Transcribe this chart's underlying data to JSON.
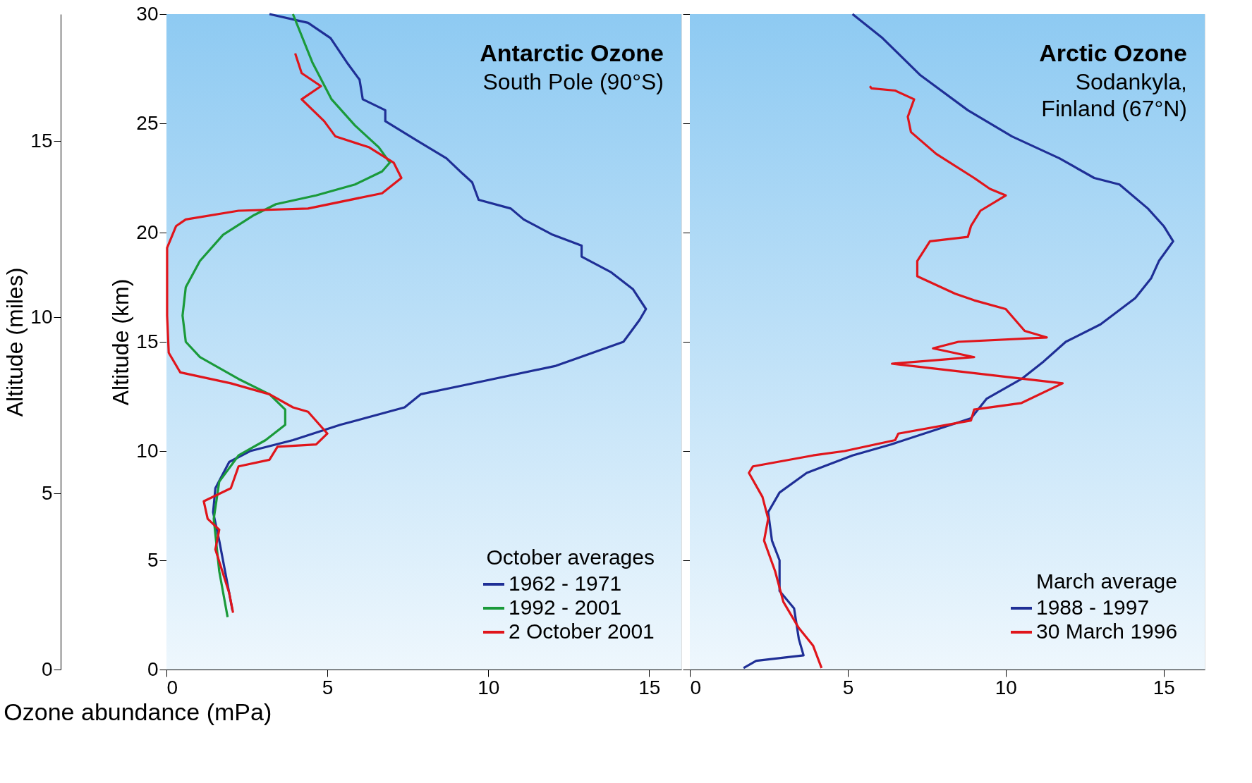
{
  "chart_data": [
    {
      "type": "line",
      "title": "Antarctic Ozone",
      "subtitle": "South Pole (90°S)",
      "xlabel": "Ozone abundance (mPa)",
      "ylabel": "Altitude (km)",
      "y2label": "Altitude (miles)",
      "y2lim": [
        0,
        18.6
      ],
      "y2ticks": [
        0,
        5,
        10,
        15
      ],
      "xlim": [
        0,
        16
      ],
      "xticks": [
        0,
        5,
        10,
        15
      ],
      "ylim": [
        0,
        30
      ],
      "yticks": [
        0,
        5,
        10,
        15,
        20,
        25,
        30
      ],
      "legend": "bottom right",
      "legend_title": "October averages",
      "line_style": "solid",
      "series": [
        {
          "name": "1962 - 1971",
          "color": "#1f2f96",
          "x": [
            2.05,
            1.95,
            1.64,
            1.45,
            1.52,
            1.95,
            2.6,
            3.93,
            5.4,
            7.4,
            7.9,
            9.2,
            12.1,
            14.2,
            14.7,
            14.9,
            14.5,
            13.8,
            12.9,
            12.9,
            12.0,
            11.1,
            10.7,
            9.7,
            9.5,
            9.2,
            8.7,
            7.8,
            6.8,
            6.8,
            6.1,
            6.0,
            5.6,
            5.1,
            4.4,
            3.2
          ],
          "values": [
            2.7,
            3.5,
            5.9,
            7.2,
            8.3,
            9.5,
            10.0,
            10.5,
            11.2,
            12.0,
            12.6,
            13.0,
            13.9,
            15.0,
            16.0,
            16.5,
            17.4,
            18.2,
            18.9,
            19.4,
            19.9,
            20.6,
            21.1,
            21.5,
            22.3,
            22.7,
            23.4,
            24.2,
            25.1,
            25.6,
            26.1,
            27.0,
            27.8,
            28.9,
            29.6,
            30.0
          ]
        },
        {
          "name": "1992 - 2001",
          "color": "#1a9a3a",
          "x": [
            1.9,
            1.64,
            1.47,
            1.64,
            2.24,
            3.08,
            3.69,
            3.69,
            3.2,
            2.24,
            1.04,
            0.6,
            0.5,
            0.6,
            1.04,
            1.76,
            2.72,
            3.4,
            4.65,
            5.86,
            6.7,
            6.94,
            6.6,
            5.86,
            5.13,
            4.53,
            3.93
          ],
          "values": [
            2.4,
            4.5,
            6.9,
            8.6,
            9.8,
            10.5,
            11.2,
            11.9,
            12.6,
            13.3,
            14.3,
            15.0,
            16.2,
            17.5,
            18.7,
            19.9,
            20.8,
            21.3,
            21.7,
            22.2,
            22.8,
            23.2,
            23.9,
            24.9,
            26.1,
            27.8,
            30.0
          ]
        },
        {
          "name": "2 October 2001",
          "color": "#e0151b",
          "x": [
            2.07,
            1.95,
            1.52,
            1.64,
            1.28,
            1.16,
            2.0,
            2.24,
            3.2,
            3.45,
            4.65,
            5.0,
            4.4,
            3.93,
            3.2,
            2.0,
            0.43,
            0.07,
            0.02,
            0.02,
            0.3,
            0.6,
            2.24,
            4.4,
            6.7,
            7.3,
            7.06,
            6.3,
            5.25,
            4.9,
            4.2,
            4.8,
            4.2,
            4.0
          ],
          "values": [
            2.6,
            3.5,
            5.5,
            6.4,
            6.9,
            7.7,
            8.3,
            9.3,
            9.6,
            10.2,
            10.3,
            10.8,
            11.8,
            12.0,
            12.6,
            13.1,
            13.6,
            14.5,
            16.2,
            19.3,
            20.3,
            20.6,
            21.0,
            21.1,
            21.8,
            22.5,
            23.2,
            23.9,
            24.4,
            25.1,
            26.1,
            26.7,
            27.3,
            28.2
          ]
        }
      ]
    },
    {
      "type": "line",
      "title": "Arctic Ozone",
      "subtitle": "Sodankyla,\nFinland (67°N)",
      "xlim": [
        0,
        16.3
      ],
      "xticks": [
        0,
        5,
        10,
        15
      ],
      "ylim": [
        0,
        30
      ],
      "yticks": [
        0,
        5,
        10,
        15,
        20,
        25,
        30
      ],
      "tick_labels": "x",
      "legend": "bottom right",
      "legend_title": "March average",
      "line_style": "solid",
      "series": [
        {
          "name": "1988 - 1997",
          "color": "#1f2f96",
          "x": [
            1.7,
            2.1,
            3.6,
            3.45,
            3.3,
            2.84,
            2.84,
            2.6,
            2.48,
            2.84,
            3.7,
            5.15,
            6.36,
            8.9,
            9.4,
            10.5,
            11.2,
            11.9,
            13.0,
            14.1,
            14.6,
            14.85,
            15.3,
            15.0,
            14.5,
            13.6,
            12.8,
            11.7,
            10.2,
            8.8,
            7.3,
            6.1,
            5.15
          ],
          "values": [
            0.07,
            0.4,
            0.65,
            1.4,
            2.8,
            3.6,
            5.0,
            5.9,
            7.2,
            8.1,
            9.0,
            9.8,
            10.3,
            11.5,
            12.4,
            13.3,
            14.1,
            15.0,
            15.8,
            17.0,
            17.9,
            18.7,
            19.6,
            20.3,
            21.1,
            22.2,
            22.5,
            23.4,
            24.4,
            25.6,
            27.2,
            28.9,
            30.0
          ]
        },
        {
          "name": "30 March 1996",
          "color": "#e0151b",
          "x": [
            4.17,
            3.9,
            3.45,
            2.96,
            2.7,
            2.35,
            2.48,
            2.3,
            1.87,
            2.0,
            3.9,
            4.9,
            6.5,
            6.6,
            8.9,
            9.0,
            10.5,
            11.8,
            10.0,
            6.4,
            9.0,
            7.7,
            8.5,
            11.3,
            10.6,
            10.0,
            9.0,
            8.4,
            7.2,
            7.2,
            7.6,
            8.8,
            8.9,
            9.2,
            10.0,
            9.5,
            9.0,
            7.8,
            7.0,
            6.9,
            7.1,
            6.5,
            5.75,
            5.7
          ],
          "values": [
            0.07,
            1.1,
            1.9,
            3.1,
            4.5,
            5.9,
            6.9,
            7.9,
            9.0,
            9.3,
            9.8,
            10.0,
            10.5,
            10.8,
            11.4,
            11.9,
            12.2,
            13.1,
            13.4,
            14.0,
            14.3,
            14.7,
            15.0,
            15.2,
            15.5,
            16.5,
            16.9,
            17.2,
            18.0,
            18.7,
            19.6,
            19.8,
            20.3,
            21.0,
            21.7,
            22.0,
            22.5,
            23.6,
            24.6,
            25.3,
            26.1,
            26.5,
            26.6,
            26.7
          ]
        }
      ]
    }
  ]
}
